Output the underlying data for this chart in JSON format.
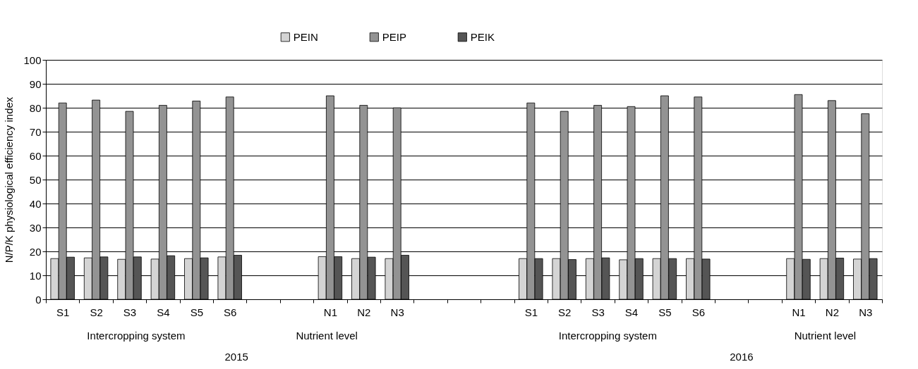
{
  "chart_data": {
    "type": "bar",
    "ylabel": "N/P/K physiological efficiency index",
    "categories": [
      "S1",
      "S2",
      "S3",
      "S4",
      "S5",
      "S6",
      null,
      null,
      "N1",
      "N2",
      "N3",
      null,
      null,
      null,
      "S1",
      "S2",
      "S3",
      "S4",
      "S5",
      "S6",
      null,
      null,
      "N1",
      "N2",
      "N3"
    ],
    "series": [
      {
        "name": "PEIN",
        "color": "#d4d4d4",
        "values": [
          17,
          17.3,
          16.7,
          16.8,
          17,
          17.7,
          null,
          null,
          17.8,
          17,
          17,
          null,
          null,
          null,
          17,
          17,
          17,
          16.5,
          17,
          17,
          null,
          null,
          17,
          17,
          16.8
        ]
      },
      {
        "name": "PEIP",
        "color": "#939393",
        "values": [
          82,
          83.2,
          78.5,
          81,
          82.8,
          84.5,
          null,
          null,
          85,
          81,
          80,
          null,
          null,
          null,
          82,
          78.5,
          81,
          80.5,
          85,
          84.5,
          null,
          null,
          85.5,
          83,
          77.5
        ]
      },
      {
        "name": "PEIK",
        "color": "#555555",
        "values": [
          17.6,
          17.7,
          17.7,
          18.2,
          17.3,
          18.4,
          null,
          null,
          17.8,
          17.6,
          18.4,
          null,
          null,
          null,
          17,
          16.6,
          17.3,
          17,
          17,
          16.8,
          null,
          null,
          16.7,
          17.2,
          17
        ]
      }
    ],
    "ylim": [
      0,
      100
    ],
    "yticks": [
      0,
      10,
      20,
      30,
      40,
      50,
      60,
      70,
      80,
      90,
      100
    ],
    "grid": "y",
    "legend": "top",
    "annotations": [
      "Intercropping system",
      "Nutrient level",
      "2015",
      "Intercropping system",
      "Nutrient level",
      "2016"
    ]
  }
}
